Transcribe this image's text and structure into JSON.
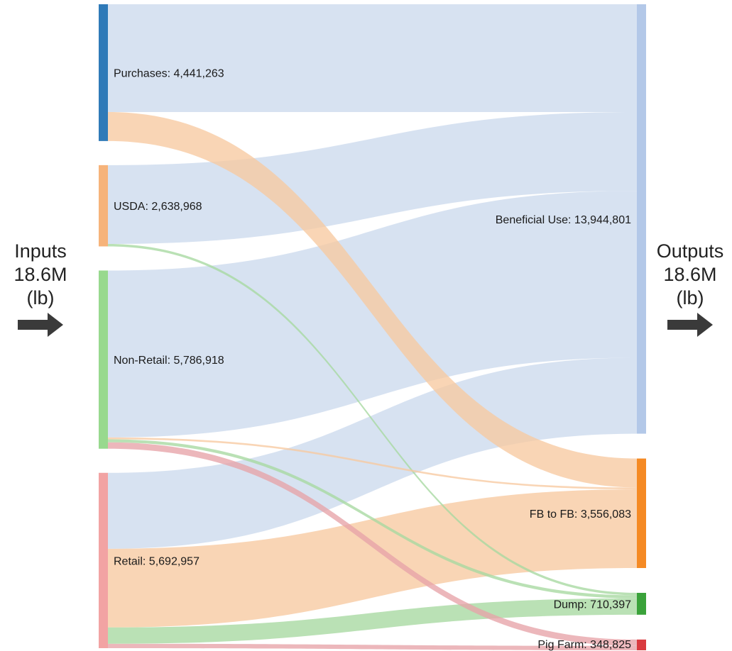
{
  "left_label": {
    "title": "Inputs",
    "total": "18.6M",
    "unit": "(lb)",
    "icon": "arrow-right-icon"
  },
  "right_label": {
    "title": "Outputs",
    "total": "18.6M",
    "unit": "(lb)",
    "icon": "arrow-right-icon"
  },
  "colors": {
    "flow_beneficial": "#c9d8ec",
    "flow_fb": "#f7c9a0",
    "flow_dump": "#a7d9a0",
    "flow_pig": "#e7a3a8",
    "arrow": "#3a3a3a"
  },
  "chart_data": {
    "type": "sankey",
    "unit": "lb",
    "sources": [
      {
        "id": "purchases",
        "label": "Purchases: 4,441,263",
        "name": "Purchases",
        "value": 4441263,
        "color": "#2f7ab8"
      },
      {
        "id": "usda",
        "label": "USDA: 2,638,968",
        "name": "USDA",
        "value": 2638968,
        "color": "#f6b37a"
      },
      {
        "id": "nonretail",
        "label": "Non-Retail: 5,786,918",
        "name": "Non-Retail",
        "value": 5786918,
        "color": "#98d98e"
      },
      {
        "id": "retail",
        "label": "Retail: 5,692,957",
        "name": "Retail",
        "value": 5692957,
        "color": "#f2a3a3"
      }
    ],
    "targets": [
      {
        "id": "beneficial",
        "label": "Beneficial Use: 13,944,801",
        "name": "Beneficial Use",
        "value": 13944801,
        "color": "#b3c8e8"
      },
      {
        "id": "fb",
        "label": "FB to FB: 3,556,083",
        "name": "FB to FB",
        "value": 3556083,
        "color": "#f58a24"
      },
      {
        "id": "dump",
        "label": "Dump: 710,397",
        "name": "Dump",
        "value": 710397,
        "color": "#3aa23a"
      },
      {
        "id": "pig",
        "label": "Pig Farm: 348,825",
        "name": "Pig Farm",
        "value": 348825,
        "color": "#d93a3f"
      }
    ],
    "links": [
      {
        "source": "purchases",
        "target": "beneficial",
        "value": 3500000
      },
      {
        "source": "purchases",
        "target": "fb",
        "value": 941263
      },
      {
        "source": "usda",
        "target": "beneficial",
        "value": 2560000
      },
      {
        "source": "usda",
        "target": "dump",
        "value": 78968
      },
      {
        "source": "nonretail",
        "target": "beneficial",
        "value": 5420000
      },
      {
        "source": "nonretail",
        "target": "fb",
        "value": 60000
      },
      {
        "source": "nonretail",
        "target": "dump",
        "value": 100000
      },
      {
        "source": "nonretail",
        "target": "pig",
        "value": 206918
      },
      {
        "source": "retail",
        "target": "beneficial",
        "value": 2464801
      },
      {
        "source": "retail",
        "target": "fb",
        "value": 2554820
      },
      {
        "source": "retail",
        "target": "dump",
        "value": 531429
      },
      {
        "source": "retail",
        "target": "pig",
        "value": 141907
      }
    ]
  }
}
